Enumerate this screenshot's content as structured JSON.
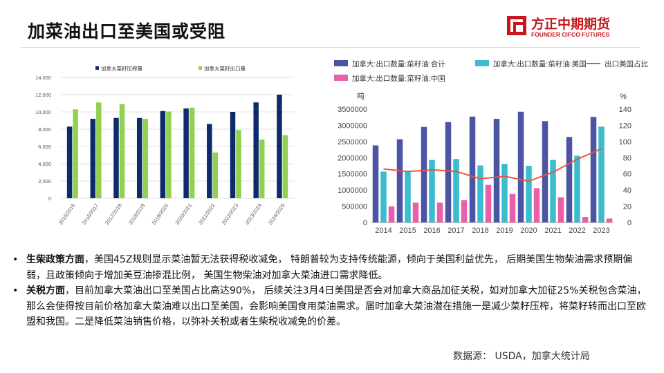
{
  "title": "加菜油出口至美国或受阻",
  "logo": {
    "cn": "方正中期期货",
    "en": "FOUNDER CIFCO FUTURES",
    "color": "#c8161d"
  },
  "chart_data": [
    {
      "type": "bar",
      "categories": [
        "2015/2016",
        "2016/2017",
        "2017/2018",
        "2018/2019",
        "2019/2020",
        "2020/2021",
        "2021/2022",
        "2022/2023",
        "2023/2024",
        "2024/2025"
      ],
      "series": [
        {
          "name": "加拿大菜籽压榨量",
          "color": "#0d2a6b",
          "values": [
            8300,
            9200,
            9300,
            9300,
            10100,
            10400,
            8600,
            10000,
            11100,
            12000
          ]
        },
        {
          "name": "加拿大菜籽出口量",
          "color": "#92d050",
          "values": [
            10300,
            11100,
            10900,
            9200,
            10050,
            10500,
            5300,
            7900,
            6800,
            7300
          ]
        }
      ],
      "ylim": [
        0,
        14000
      ],
      "yticks": [
        "0",
        "2,000",
        "4,000",
        "6,000",
        "8,000",
        "10,000",
        "12,000",
        "14,000"
      ],
      "grid": true,
      "legend": "top"
    },
    {
      "type": "bar",
      "categories": [
        "2014",
        "2015",
        "2016",
        "2017",
        "2018",
        "2019",
        "2020",
        "2021",
        "2022",
        "2023"
      ],
      "series": [
        {
          "name": "加拿大:出口数量:菜籽油:合计",
          "color": "#4b55a3",
          "axis": "left",
          "values": [
            2380000,
            2570000,
            2950000,
            3100000,
            3270000,
            3200000,
            3420000,
            3130000,
            2640000,
            3260000
          ]
        },
        {
          "name": "加拿大:出口数量:菜籽油:美国",
          "color": "#3bbcd0",
          "axis": "left",
          "values": [
            1570000,
            1600000,
            1930000,
            1960000,
            1760000,
            1810000,
            1750000,
            1930000,
            2060000,
            2960000
          ]
        },
        {
          "name": "出口美国占比",
          "type": "line",
          "color": "#e8553f",
          "axis": "right",
          "values": [
            66,
            63,
            65,
            63,
            54,
            57,
            51,
            62,
            78,
            91
          ]
        },
        {
          "name": "加拿大:出口数量:菜籽油:中国",
          "color": "#ea5fa8",
          "axis": "left",
          "values": [
            500000,
            610000,
            610000,
            690000,
            1160000,
            880000,
            1060000,
            780000,
            170000,
            120000
          ]
        }
      ],
      "ylim": [
        0,
        3500000
      ],
      "yticks": [
        "0",
        "500000",
        "1000000",
        "1500000",
        "2000000",
        "2500000",
        "3000000",
        "3500000"
      ],
      "y2lim": [
        0,
        140
      ],
      "y2ticks": [
        "0",
        "20",
        "40",
        "60",
        "80",
        "100",
        "120",
        "140"
      ],
      "ylabel": "吨",
      "y2label": "%",
      "legend": "top"
    }
  ],
  "bullets": [
    {
      "head": "生柴政策方面",
      "text": "，美国45Z规则显示菜油暂无法获得税收减免， 特朗普较为支持传统能源，倾向于美国利益优先， 后期美国生物柴油需求预期偏弱，且政策倾向于增加美豆油掺混比例， 美国生物柴油对加拿大菜油进口需求降低。"
    },
    {
      "head": "关税方面",
      "text": "，目前加拿大菜油出口至美国占比高达90%， 后续关注3月4日美国是否会对加拿大商品加征关税，如对加拿大加征25%关税包含菜油，那么会使得按目前价格加拿大菜油难以出口至美国，会影响美国食用菜油需求。届时加拿大菜油潜在措施一是减少菜籽压榨，将菜籽转而出口至欧盟和我国。二是降低菜油销售价格，以弥补关税或者生柴税收减免的价差。"
    }
  ],
  "bullet_marker": "•",
  "source": "数据源：  USDA，加拿大统计局"
}
